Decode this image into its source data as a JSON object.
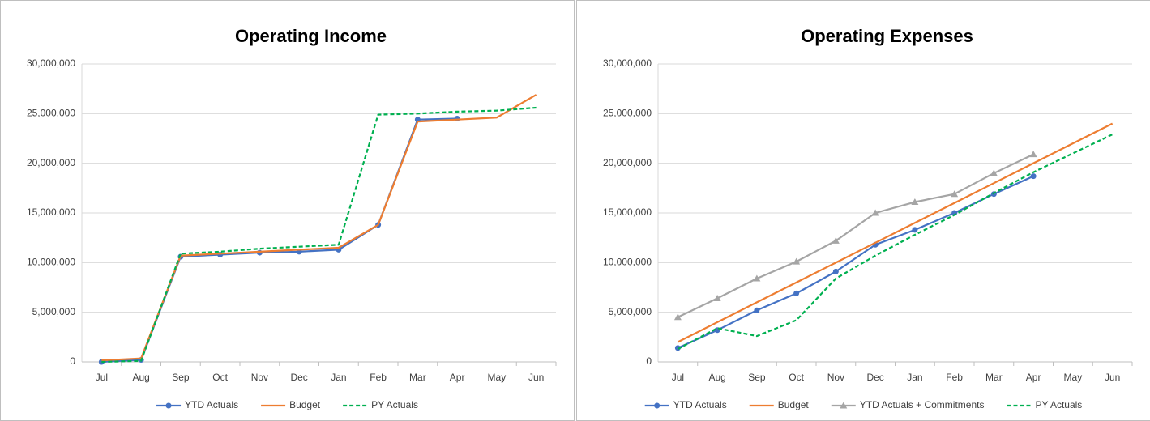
{
  "chart_data": [
    {
      "type": "line",
      "title": "Operating Income",
      "categories": [
        "Jul",
        "Aug",
        "Sep",
        "Oct",
        "Nov",
        "Dec",
        "Jan",
        "Feb",
        "Mar",
        "Apr",
        "May",
        "Jun"
      ],
      "ylim": [
        0,
        30000000
      ],
      "yticks": [
        0,
        {
          "value": 5000000,
          "label": "5,000,000"
        },
        {
          "value": 10000000,
          "label": "10,000,000"
        },
        {
          "value": 15000000,
          "label": "15,000,000"
        },
        {
          "value": 20000000,
          "label": "20,000,000"
        },
        {
          "value": 25000000,
          "label": "25,000,000"
        },
        {
          "value": 30000000,
          "label": "30,000,000"
        }
      ],
      "grid": true,
      "legend": "bottom",
      "series": [
        {
          "name": "YTD Actuals",
          "color": "#4472c4",
          "marker": "circle",
          "dash": false,
          "values": [
            0,
            200000,
            10600000,
            10800000,
            11000000,
            11100000,
            11300000,
            13800000,
            24400000,
            24500000,
            null,
            null
          ]
        },
        {
          "name": "Budget",
          "color": "#ed7d31",
          "marker": "none",
          "dash": false,
          "values": [
            150000,
            350000,
            10700000,
            10900000,
            11100000,
            11300000,
            11500000,
            13800000,
            24200000,
            24400000,
            24600000,
            26900000
          ]
        },
        {
          "name": "PY Actuals",
          "color": "#00b050",
          "marker": "none",
          "dash": true,
          "values": [
            0,
            100000,
            10900000,
            11100000,
            11400000,
            11600000,
            11800000,
            24900000,
            25000000,
            25200000,
            25300000,
            25600000
          ]
        }
      ]
    },
    {
      "type": "line",
      "title": "Operating Expenses",
      "categories": [
        "Jul",
        "Aug",
        "Sep",
        "Oct",
        "Nov",
        "Dec",
        "Jan",
        "Feb",
        "Mar",
        "Apr",
        "May",
        "Jun"
      ],
      "ylim": [
        0,
        30000000
      ],
      "yticks": [
        0,
        {
          "value": 5000000,
          "label": "5,000,000"
        },
        {
          "value": 10000000,
          "label": "10,000,000"
        },
        {
          "value": 15000000,
          "label": "15,000,000"
        },
        {
          "value": 20000000,
          "label": "20,000,000"
        },
        {
          "value": 25000000,
          "label": "25,000,000"
        },
        {
          "value": 30000000,
          "label": "30,000,000"
        }
      ],
      "grid": true,
      "legend": "bottom",
      "series": [
        {
          "name": "YTD Actuals",
          "color": "#4472c4",
          "marker": "circle",
          "dash": false,
          "values": [
            1400000,
            3200000,
            5200000,
            6900000,
            9100000,
            11800000,
            13300000,
            15000000,
            16900000,
            18700000,
            null,
            null
          ]
        },
        {
          "name": "Budget",
          "color": "#ed7d31",
          "marker": "none",
          "dash": false,
          "values": [
            2000000,
            4000000,
            6000000,
            8000000,
            10000000,
            12000000,
            14000000,
            16000000,
            18000000,
            20000000,
            22000000,
            24000000
          ]
        },
        {
          "name": "YTD Actuals + Commitments",
          "color": "#a5a5a5",
          "marker": "triangle",
          "dash": false,
          "values": [
            4500000,
            6400000,
            8400000,
            10100000,
            12200000,
            15000000,
            16100000,
            16900000,
            19000000,
            20900000,
            null,
            null
          ]
        },
        {
          "name": "PY Actuals",
          "color": "#00b050",
          "marker": "none",
          "dash": true,
          "values": [
            1300000,
            3400000,
            2600000,
            4200000,
            8400000,
            10700000,
            12800000,
            14800000,
            17000000,
            19100000,
            21000000,
            22900000
          ]
        }
      ]
    }
  ]
}
